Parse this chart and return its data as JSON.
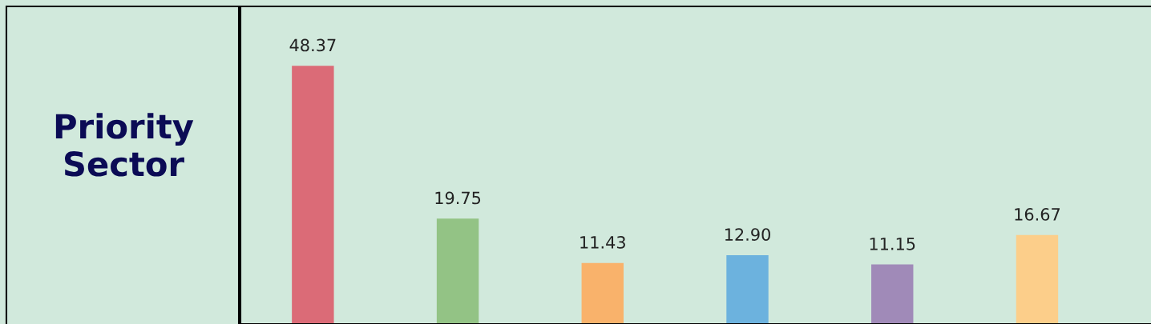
{
  "chart_data": {
    "type": "bar",
    "title": "Priority\nSector",
    "categories": [
      null,
      null,
      null,
      null,
      null,
      null
    ],
    "values": [
      48.37,
      19.75,
      11.43,
      12.9,
      11.15,
      16.67
    ],
    "value_labels": [
      "48.37",
      "19.75",
      "11.43",
      "12.90",
      "11.15",
      "16.67"
    ],
    "colors": [
      "#db6b77",
      "#93c385",
      "#f9b26b",
      "#6cb2de",
      "#a08ab8",
      "#fcce8a"
    ],
    "ylim": [
      0,
      59.5
    ],
    "tick_labels": false
  }
}
